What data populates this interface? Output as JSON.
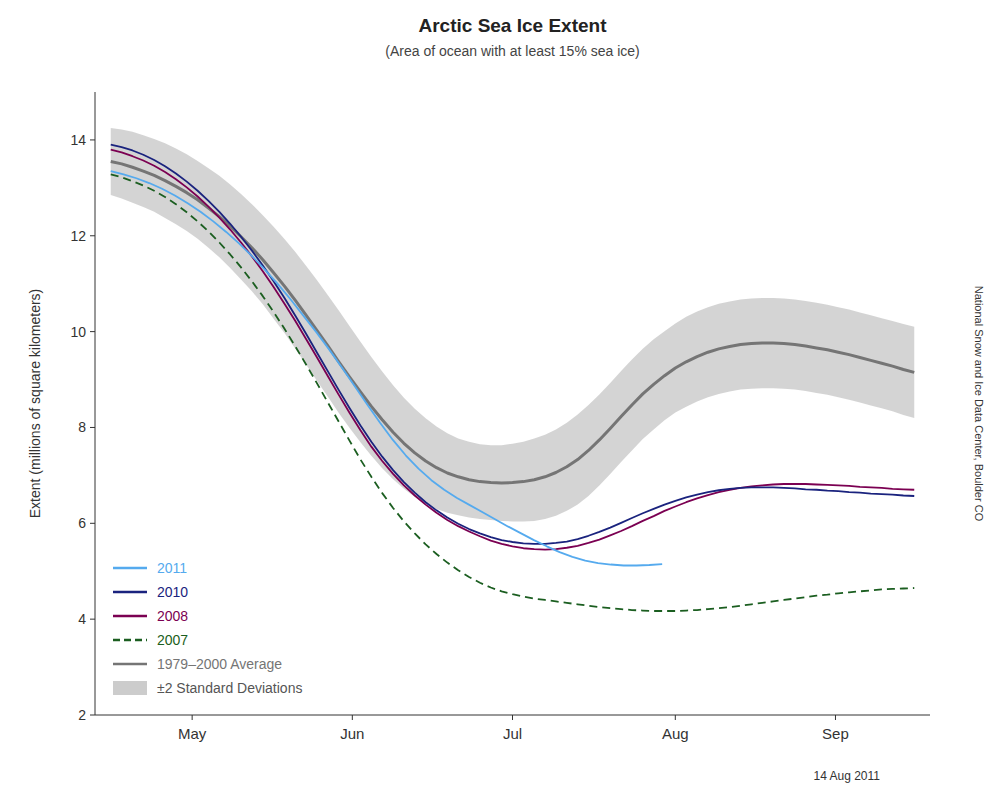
{
  "chart_data": {
    "type": "line",
    "title": "Arctic Sea Ice Extent",
    "subtitle": "(Area of ocean with at least 15% sea ice)",
    "y_label": "Extent (millions of square kilometers)",
    "annotations": [
      "National Snow and Ice Data Center, Boulder CO",
      "14 Aug 2011"
    ],
    "xlim": [
      -3,
      156
    ],
    "xticks": [
      {
        "value": 15.5,
        "label": "May"
      },
      {
        "value": 46,
        "label": "Jun"
      },
      {
        "value": 76.5,
        "label": "Jul"
      },
      {
        "value": 107.5,
        "label": "Aug"
      },
      {
        "value": 138,
        "label": "Sep"
      }
    ],
    "ylim": [
      2,
      15
    ],
    "yticks": [
      2,
      4,
      6,
      8,
      10,
      12,
      14
    ],
    "grid": false,
    "legend": "lower left",
    "x": [
      0,
      2.07,
      4.14,
      6.2,
      8.27,
      10.34,
      12.41,
      14.47,
      16.54,
      18.61,
      20.68,
      22.74,
      24.81,
      26.88,
      28.95,
      31.01,
      33.08,
      35.15,
      37.22,
      39.28,
      41.35,
      43.42,
      45.49,
      47.55,
      49.62,
      51.69,
      53.76,
      55.82,
      57.89,
      59.96,
      62.03,
      64.09,
      66.16,
      68.23,
      70.3,
      72.36,
      74.43,
      76.5,
      78.57,
      80.64,
      82.7,
      84.77,
      86.84,
      88.91,
      90.97,
      93.04,
      95.11,
      97.18,
      99.24,
      101.31,
      103.38,
      105.45,
      107.51,
      109.58,
      111.65,
      113.72,
      115.78,
      117.85,
      119.92,
      121.99,
      124.05,
      126.12,
      128.19,
      130.26,
      132.32,
      134.39,
      136.46,
      138.53,
      140.59,
      142.66,
      144.73,
      146.8,
      148.86,
      150.93,
      153
    ],
    "series": [
      {
        "name": "2011",
        "color": "#55AAEE",
        "line_style": "solid",
        "x": [
          0,
          2.44,
          4.88,
          7.33,
          9.77,
          12.21,
          14.65,
          17.09,
          19.53,
          21.98,
          24.42,
          26.86,
          29.3,
          31.74,
          34.19,
          36.63,
          39.07,
          41.51,
          43.95,
          46.4,
          48.84,
          51.28,
          53.72,
          56.16,
          58.6,
          61.05,
          63.49,
          65.93,
          68.37,
          70.81,
          73.26,
          75.7,
          78.14,
          80.58,
          83.02,
          85.47,
          87.91,
          90.35,
          92.79,
          95.23,
          97.67,
          100.12,
          102.56,
          105
        ],
        "values": [
          13.35,
          13.28,
          13.2,
          13.1,
          12.98,
          12.84,
          12.68,
          12.5,
          12.3,
          12.08,
          11.84,
          11.58,
          11.3,
          11.0,
          10.68,
          10.34,
          10.0,
          9.64,
          9.26,
          8.87,
          8.48,
          8.1,
          7.74,
          7.42,
          7.14,
          6.9,
          6.7,
          6.53,
          6.38,
          6.23,
          6.08,
          5.93,
          5.79,
          5.65,
          5.52,
          5.4,
          5.3,
          5.22,
          5.17,
          5.14,
          5.12,
          5.12,
          5.13,
          5.15
        ]
      },
      {
        "name": "2010",
        "color": "#1A237E",
        "line_style": "solid",
        "values": [
          13.9,
          13.85,
          13.78,
          13.69,
          13.58,
          13.45,
          13.3,
          13.13,
          12.94,
          12.73,
          12.5,
          12.25,
          11.98,
          11.69,
          11.38,
          11.05,
          10.7,
          10.33,
          9.95,
          9.56,
          9.17,
          8.78,
          8.4,
          8.04,
          7.7,
          7.39,
          7.11,
          6.86,
          6.64,
          6.44,
          6.27,
          6.12,
          5.99,
          5.88,
          5.79,
          5.71,
          5.65,
          5.61,
          5.58,
          5.57,
          5.57,
          5.59,
          5.62,
          5.67,
          5.74,
          5.82,
          5.91,
          6.01,
          6.11,
          6.21,
          6.3,
          6.39,
          6.47,
          6.54,
          6.6,
          6.65,
          6.69,
          6.72,
          6.74,
          6.75,
          6.75,
          6.75,
          6.74,
          6.73,
          6.71,
          6.7,
          6.68,
          6.67,
          6.65,
          6.64,
          6.62,
          6.61,
          6.6,
          6.58,
          6.57
        ]
      },
      {
        "name": "2008",
        "color": "#7B0052",
        "line_style": "solid",
        "values": [
          13.8,
          13.74,
          13.66,
          13.57,
          13.46,
          13.33,
          13.18,
          13.01,
          12.82,
          12.61,
          12.38,
          12.13,
          11.86,
          11.57,
          11.26,
          10.93,
          10.58,
          10.22,
          9.84,
          9.46,
          9.07,
          8.68,
          8.3,
          7.94,
          7.6,
          7.3,
          7.03,
          6.79,
          6.58,
          6.39,
          6.22,
          6.07,
          5.94,
          5.83,
          5.73,
          5.64,
          5.57,
          5.52,
          5.48,
          5.46,
          5.45,
          5.46,
          5.49,
          5.53,
          5.59,
          5.66,
          5.75,
          5.84,
          5.94,
          6.05,
          6.15,
          6.26,
          6.35,
          6.44,
          6.52,
          6.59,
          6.65,
          6.7,
          6.74,
          6.77,
          6.79,
          6.81,
          6.82,
          6.82,
          6.82,
          6.81,
          6.8,
          6.79,
          6.78,
          6.76,
          6.75,
          6.74,
          6.72,
          6.71,
          6.7
        ]
      },
      {
        "name": "2007",
        "color": "#1B5E20",
        "line_style": "dashed",
        "values": [
          13.28,
          13.22,
          13.14,
          13.05,
          12.94,
          12.81,
          12.66,
          12.49,
          12.3,
          12.09,
          11.86,
          11.61,
          11.34,
          11.05,
          10.74,
          10.41,
          10.06,
          9.69,
          9.31,
          8.92,
          8.52,
          8.12,
          7.72,
          7.33,
          6.97,
          6.63,
          6.32,
          6.04,
          5.79,
          5.56,
          5.36,
          5.18,
          5.02,
          4.88,
          4.76,
          4.66,
          4.58,
          4.52,
          4.47,
          4.43,
          4.4,
          4.37,
          4.34,
          4.31,
          4.28,
          4.25,
          4.23,
          4.21,
          4.19,
          4.18,
          4.17,
          4.17,
          4.17,
          4.18,
          4.19,
          4.21,
          4.23,
          4.25,
          4.28,
          4.31,
          4.34,
          4.37,
          4.4,
          4.43,
          4.46,
          4.49,
          4.51,
          4.54,
          4.56,
          4.58,
          4.6,
          4.62,
          4.63,
          4.64,
          4.65
        ]
      },
      {
        "name": "1979–2000 Average",
        "color": "#757575",
        "line_style": "solid",
        "values": [
          13.55,
          13.5,
          13.43,
          13.35,
          13.26,
          13.15,
          13.03,
          12.9,
          12.75,
          12.58,
          12.4,
          12.2,
          11.98,
          11.75,
          11.5,
          11.23,
          10.95,
          10.65,
          10.34,
          10.02,
          9.7,
          9.37,
          9.05,
          8.74,
          8.44,
          8.16,
          7.9,
          7.67,
          7.47,
          7.3,
          7.16,
          7.05,
          6.97,
          6.91,
          6.87,
          6.85,
          6.84,
          6.85,
          6.87,
          6.91,
          6.97,
          7.06,
          7.18,
          7.33,
          7.52,
          7.74,
          7.98,
          8.23,
          8.47,
          8.7,
          8.9,
          9.08,
          9.24,
          9.37,
          9.48,
          9.57,
          9.64,
          9.69,
          9.73,
          9.75,
          9.76,
          9.76,
          9.75,
          9.73,
          9.7,
          9.66,
          9.62,
          9.57,
          9.52,
          9.46,
          9.4,
          9.34,
          9.28,
          9.21,
          9.15
        ]
      },
      {
        "name": "±2 Standard Deviations",
        "type": "band",
        "color": "#CCCCCC",
        "upper": [
          14.25,
          14.22,
          14.17,
          14.1,
          14.02,
          13.93,
          13.82,
          13.7,
          13.56,
          13.41,
          13.25,
          13.07,
          12.87,
          12.66,
          12.43,
          12.19,
          11.93,
          11.66,
          11.37,
          11.07,
          10.76,
          10.44,
          10.11,
          9.79,
          9.47,
          9.17,
          8.88,
          8.62,
          8.39,
          8.19,
          8.02,
          7.88,
          7.77,
          7.7,
          7.65,
          7.63,
          7.63,
          7.66,
          7.7,
          7.77,
          7.85,
          7.96,
          8.1,
          8.27,
          8.47,
          8.69,
          8.93,
          9.18,
          9.42,
          9.64,
          9.84,
          10.01,
          10.17,
          10.31,
          10.42,
          10.51,
          10.58,
          10.63,
          10.67,
          10.69,
          10.7,
          10.7,
          10.69,
          10.67,
          10.64,
          10.6,
          10.56,
          10.51,
          10.46,
          10.4,
          10.34,
          10.28,
          10.22,
          10.16,
          10.1
        ],
        "lower": [
          12.85,
          12.78,
          12.69,
          12.6,
          12.5,
          12.37,
          12.24,
          12.1,
          11.94,
          11.75,
          11.55,
          11.33,
          11.09,
          10.84,
          10.57,
          10.27,
          9.97,
          9.64,
          9.31,
          8.97,
          8.64,
          8.3,
          7.99,
          7.69,
          7.41,
          7.15,
          6.92,
          6.72,
          6.55,
          6.41,
          6.3,
          6.22,
          6.17,
          6.12,
          6.09,
          6.07,
          6.05,
          6.04,
          6.04,
          6.05,
          6.09,
          6.16,
          6.26,
          6.39,
          6.57,
          6.79,
          7.03,
          7.28,
          7.52,
          7.76,
          7.96,
          8.15,
          8.31,
          8.43,
          8.54,
          8.63,
          8.7,
          8.75,
          8.79,
          8.81,
          8.82,
          8.82,
          8.81,
          8.79,
          8.76,
          8.72,
          8.68,
          8.63,
          8.58,
          8.52,
          8.46,
          8.4,
          8.34,
          8.26,
          8.2
        ]
      }
    ]
  }
}
